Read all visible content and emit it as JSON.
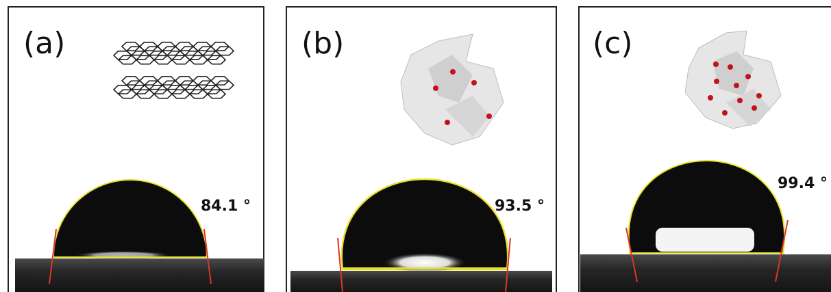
{
  "panels": [
    {
      "label": "(a)",
      "angle": "84.1 °"
    },
    {
      "label": "(b)",
      "angle": "93.5 °"
    },
    {
      "label": "(c)",
      "angle": "99.4 °"
    }
  ]
}
